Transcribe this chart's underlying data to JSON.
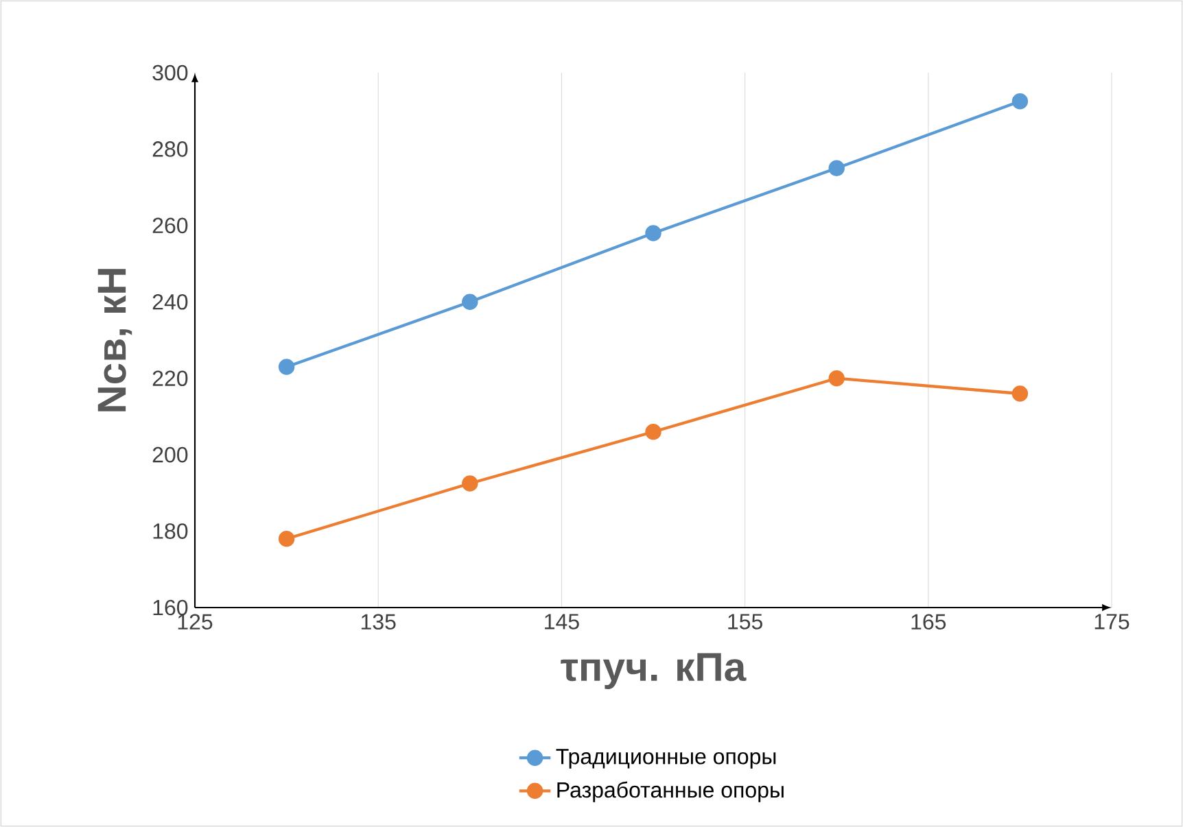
{
  "chart_data": {
    "type": "line",
    "xlabel": "τпуч. кПа",
    "ylabel": "Nсв, кН",
    "x": [
      130,
      140,
      150,
      160,
      170
    ],
    "series": [
      {
        "name": "Традиционные опоры",
        "color": "#5b9bd5",
        "values": [
          223,
          240,
          258,
          275,
          292.5
        ]
      },
      {
        "name": "Разработанные опоры",
        "color": "#ed7d31",
        "values": [
          178,
          192.5,
          206,
          220,
          216
        ]
      }
    ],
    "xlim": [
      125,
      175
    ],
    "xticks": [
      125,
      135,
      145,
      155,
      165,
      175
    ],
    "ylim": [
      160,
      300
    ],
    "yticks": [
      160,
      180,
      200,
      220,
      240,
      260,
      280,
      300
    ],
    "grid": "x",
    "legend": "bottom",
    "marker": "circle",
    "line_style": "solid"
  }
}
